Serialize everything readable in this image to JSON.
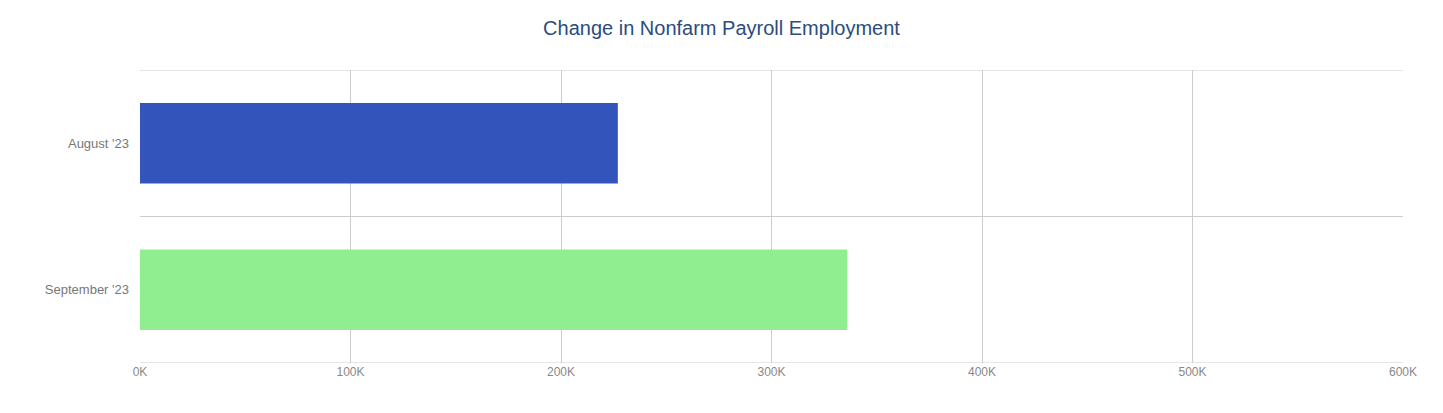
{
  "chart_data": {
    "type": "bar",
    "orientation": "horizontal",
    "title": "Change in Nonfarm Payroll Employment",
    "categories": [
      "September '23",
      "August '23"
    ],
    "values": [
      336000,
      227000
    ],
    "colors": [
      "#90ee90",
      "#3355bb"
    ],
    "xlim": [
      0,
      600000
    ],
    "xticks": [
      {
        "value": 0,
        "label": "0K"
      },
      {
        "value": 100000,
        "label": "100K"
      },
      {
        "value": 200000,
        "label": "200K"
      },
      {
        "value": 300000,
        "label": "300K"
      },
      {
        "value": 400000,
        "label": "400K"
      },
      {
        "value": 500000,
        "label": "500K"
      },
      {
        "value": 600000,
        "label": "600K"
      }
    ],
    "grid": true
  }
}
